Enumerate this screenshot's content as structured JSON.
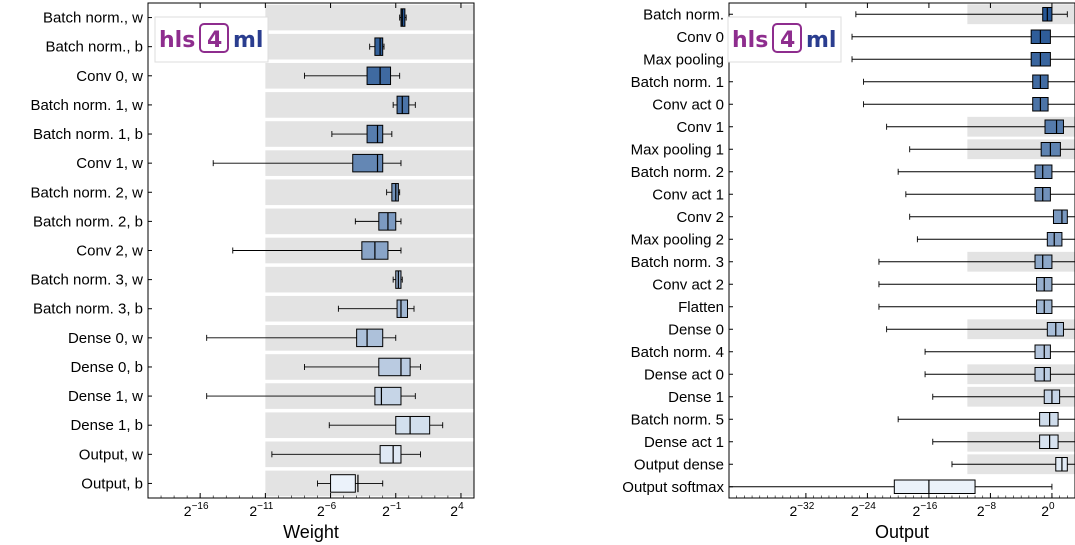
{
  "logo": {
    "text_left": "hls",
    "text_mid": "4",
    "text_right": "ml"
  },
  "chart_data": [
    {
      "type": "box",
      "xlabel": "Weight",
      "log_base": 2,
      "xlim": [
        -20,
        5
      ],
      "xticks": [
        -16,
        -11,
        -6,
        -1,
        4
      ],
      "shaded_region_log2": [
        -11,
        5
      ],
      "legend": "",
      "categories": [
        "Batch norm., w",
        "Batch norm., b",
        "Conv 0, w",
        "Batch norm. 1, w",
        "Batch norm. 1, b",
        "Conv 1, w",
        "Batch norm. 2, w",
        "Batch norm. 2, b",
        "Conv 2, w",
        "Batch norm. 3, w",
        "Batch norm. 3, b",
        "Dense 0, w",
        "Dense 0, b",
        "Dense 1, w",
        "Dense 1, b",
        "Output, w",
        "Output, b"
      ],
      "boxes_log2": [
        [
          -0.7,
          -0.6,
          -0.5,
          -0.3,
          -0.2
        ],
        [
          -3.0,
          -2.6,
          -2.2,
          -2.0,
          -1.9
        ],
        [
          -8.0,
          -3.2,
          -2.2,
          -1.4,
          -0.7
        ],
        [
          -1.2,
          -0.9,
          -0.5,
          0.0,
          0.5
        ],
        [
          -5.9,
          -3.2,
          -2.4,
          -2.0,
          -1.3
        ],
        [
          -15.0,
          -4.3,
          -2.4,
          -2.0,
          -0.6
        ],
        [
          -1.7,
          -1.3,
          -1.0,
          -0.8,
          -0.7
        ],
        [
          -4.1,
          -2.3,
          -1.6,
          -1.0,
          -0.6
        ],
        [
          -13.5,
          -3.6,
          -2.6,
          -1.6,
          -0.6
        ],
        [
          -1.2,
          -1.0,
          -0.8,
          -0.6,
          -0.5
        ],
        [
          -5.4,
          -0.9,
          -0.6,
          -0.1,
          0.4
        ],
        [
          -15.5,
          -4.0,
          -3.2,
          -2.0,
          -1.0
        ],
        [
          -8.0,
          -2.3,
          -0.6,
          0.1,
          0.9
        ],
        [
          -15.5,
          -2.6,
          -2.1,
          -0.6,
          0.5
        ],
        [
          -6.1,
          -1.0,
          0.1,
          1.6,
          2.6
        ],
        [
          -10.5,
          -2.2,
          -1.2,
          -0.6,
          0.9
        ],
        [
          -7.0,
          -6.0,
          -3.9,
          -4.1,
          -2.0
        ]
      ]
    },
    {
      "type": "box",
      "xlabel": "Output",
      "log_base": 2,
      "xlim": [
        -42,
        3
      ],
      "xticks": [
        -32,
        -24,
        -16,
        -8,
        0
      ],
      "shaded_region_log2": [
        -11,
        3
      ],
      "legend": "",
      "categories": [
        "Batch norm.",
        "Conv 0",
        "Max pooling",
        "Batch norm. 1",
        "Conv act 0",
        "Conv 1",
        "Max pooling 1",
        "Batch norm. 2",
        "Conv act 1",
        "Conv 2",
        "Max pooling 2",
        "Batch norm. 3",
        "Conv act 2",
        "Flatten",
        "Dense 0",
        "Batch norm. 4",
        "Dense act 0",
        "Dense 1",
        "Batch norm. 5",
        "Dense act 1",
        "Output dense",
        "Output softmax"
      ],
      "shaded_rows": [
        0,
        5,
        6,
        11,
        14,
        16,
        17,
        19,
        20
      ],
      "boxes_log2": [
        [
          -25.5,
          -1.2,
          -0.6,
          0.0,
          2.0
        ],
        [
          -26.0,
          -2.7,
          -1.5,
          -0.2,
          3.0
        ],
        [
          -26.0,
          -2.7,
          -1.5,
          -0.2,
          3.0
        ],
        [
          -24.5,
          -2.5,
          -1.5,
          -0.5,
          3.0
        ],
        [
          -24.5,
          -2.5,
          -1.5,
          -0.5,
          3.0
        ],
        [
          -21.5,
          -0.9,
          0.6,
          1.5,
          5.5
        ],
        [
          -18.5,
          -1.4,
          -0.2,
          1.1,
          5.5
        ],
        [
          -20.0,
          -2.2,
          -1.2,
          0.0,
          3.5
        ],
        [
          -19.0,
          -2.2,
          -1.2,
          -0.2,
          3.5
        ],
        [
          -18.5,
          0.2,
          1.3,
          2.0,
          4.8
        ],
        [
          -17.5,
          -0.6,
          0.3,
          1.3,
          4.5
        ],
        [
          -22.5,
          -2.2,
          -1.2,
          0.0,
          3.5
        ],
        [
          -22.5,
          -2.0,
          -1.0,
          0.0,
          3.5
        ],
        [
          -22.5,
          -2.0,
          -1.0,
          0.0,
          3.5
        ],
        [
          -21.5,
          -0.6,
          0.5,
          1.5,
          4.8
        ],
        [
          -16.5,
          -2.2,
          -1.0,
          -0.2,
          3.2
        ],
        [
          -16.5,
          -2.2,
          -1.0,
          -0.2,
          3.2
        ],
        [
          -15.5,
          -1.0,
          0.0,
          1.0,
          3.5
        ],
        [
          -20.0,
          -1.6,
          -0.3,
          0.8,
          3.5
        ],
        [
          -15.5,
          -1.6,
          -0.3,
          0.8,
          4.5
        ],
        [
          -13.0,
          0.5,
          1.3,
          2.0,
          4.5
        ],
        [
          -45.0,
          -20.5,
          -16.0,
          -10.0,
          0.0
        ]
      ]
    }
  ]
}
